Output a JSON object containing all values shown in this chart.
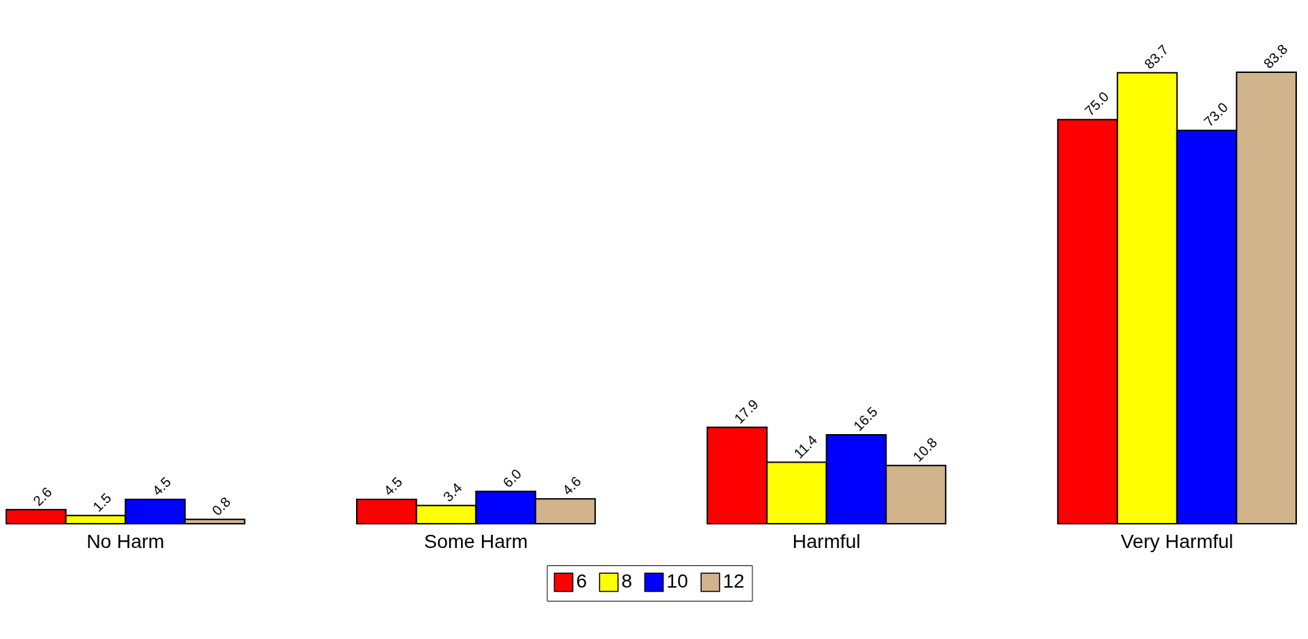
{
  "chart_data": {
    "type": "bar",
    "categories": [
      "No Harm",
      "Some Harm",
      "Harmful",
      "Very Harmful"
    ],
    "series": [
      {
        "name": "6",
        "color": "#ff0000",
        "values": [
          2.6,
          4.5,
          17.9,
          75.0
        ],
        "value_labels": [
          "2.6",
          "4.5",
          "17.9",
          "75.0"
        ]
      },
      {
        "name": "8",
        "color": "#ffff00",
        "values": [
          1.5,
          3.4,
          11.4,
          83.7
        ],
        "value_labels": [
          "1.5",
          "3.4",
          "11.4",
          "83.7"
        ]
      },
      {
        "name": "10",
        "color": "#0000ff",
        "values": [
          4.5,
          6.0,
          16.5,
          73.0
        ],
        "value_labels": [
          "4.5",
          "6.0",
          "16.5",
          "73.0"
        ]
      },
      {
        "name": "12",
        "color": "#d2b48c",
        "values": [
          0.8,
          4.6,
          10.8,
          83.8
        ],
        "value_labels": [
          "0.8",
          "4.6",
          "10.8",
          "83.8"
        ]
      }
    ],
    "legend": "bottom",
    "grid": false
  }
}
